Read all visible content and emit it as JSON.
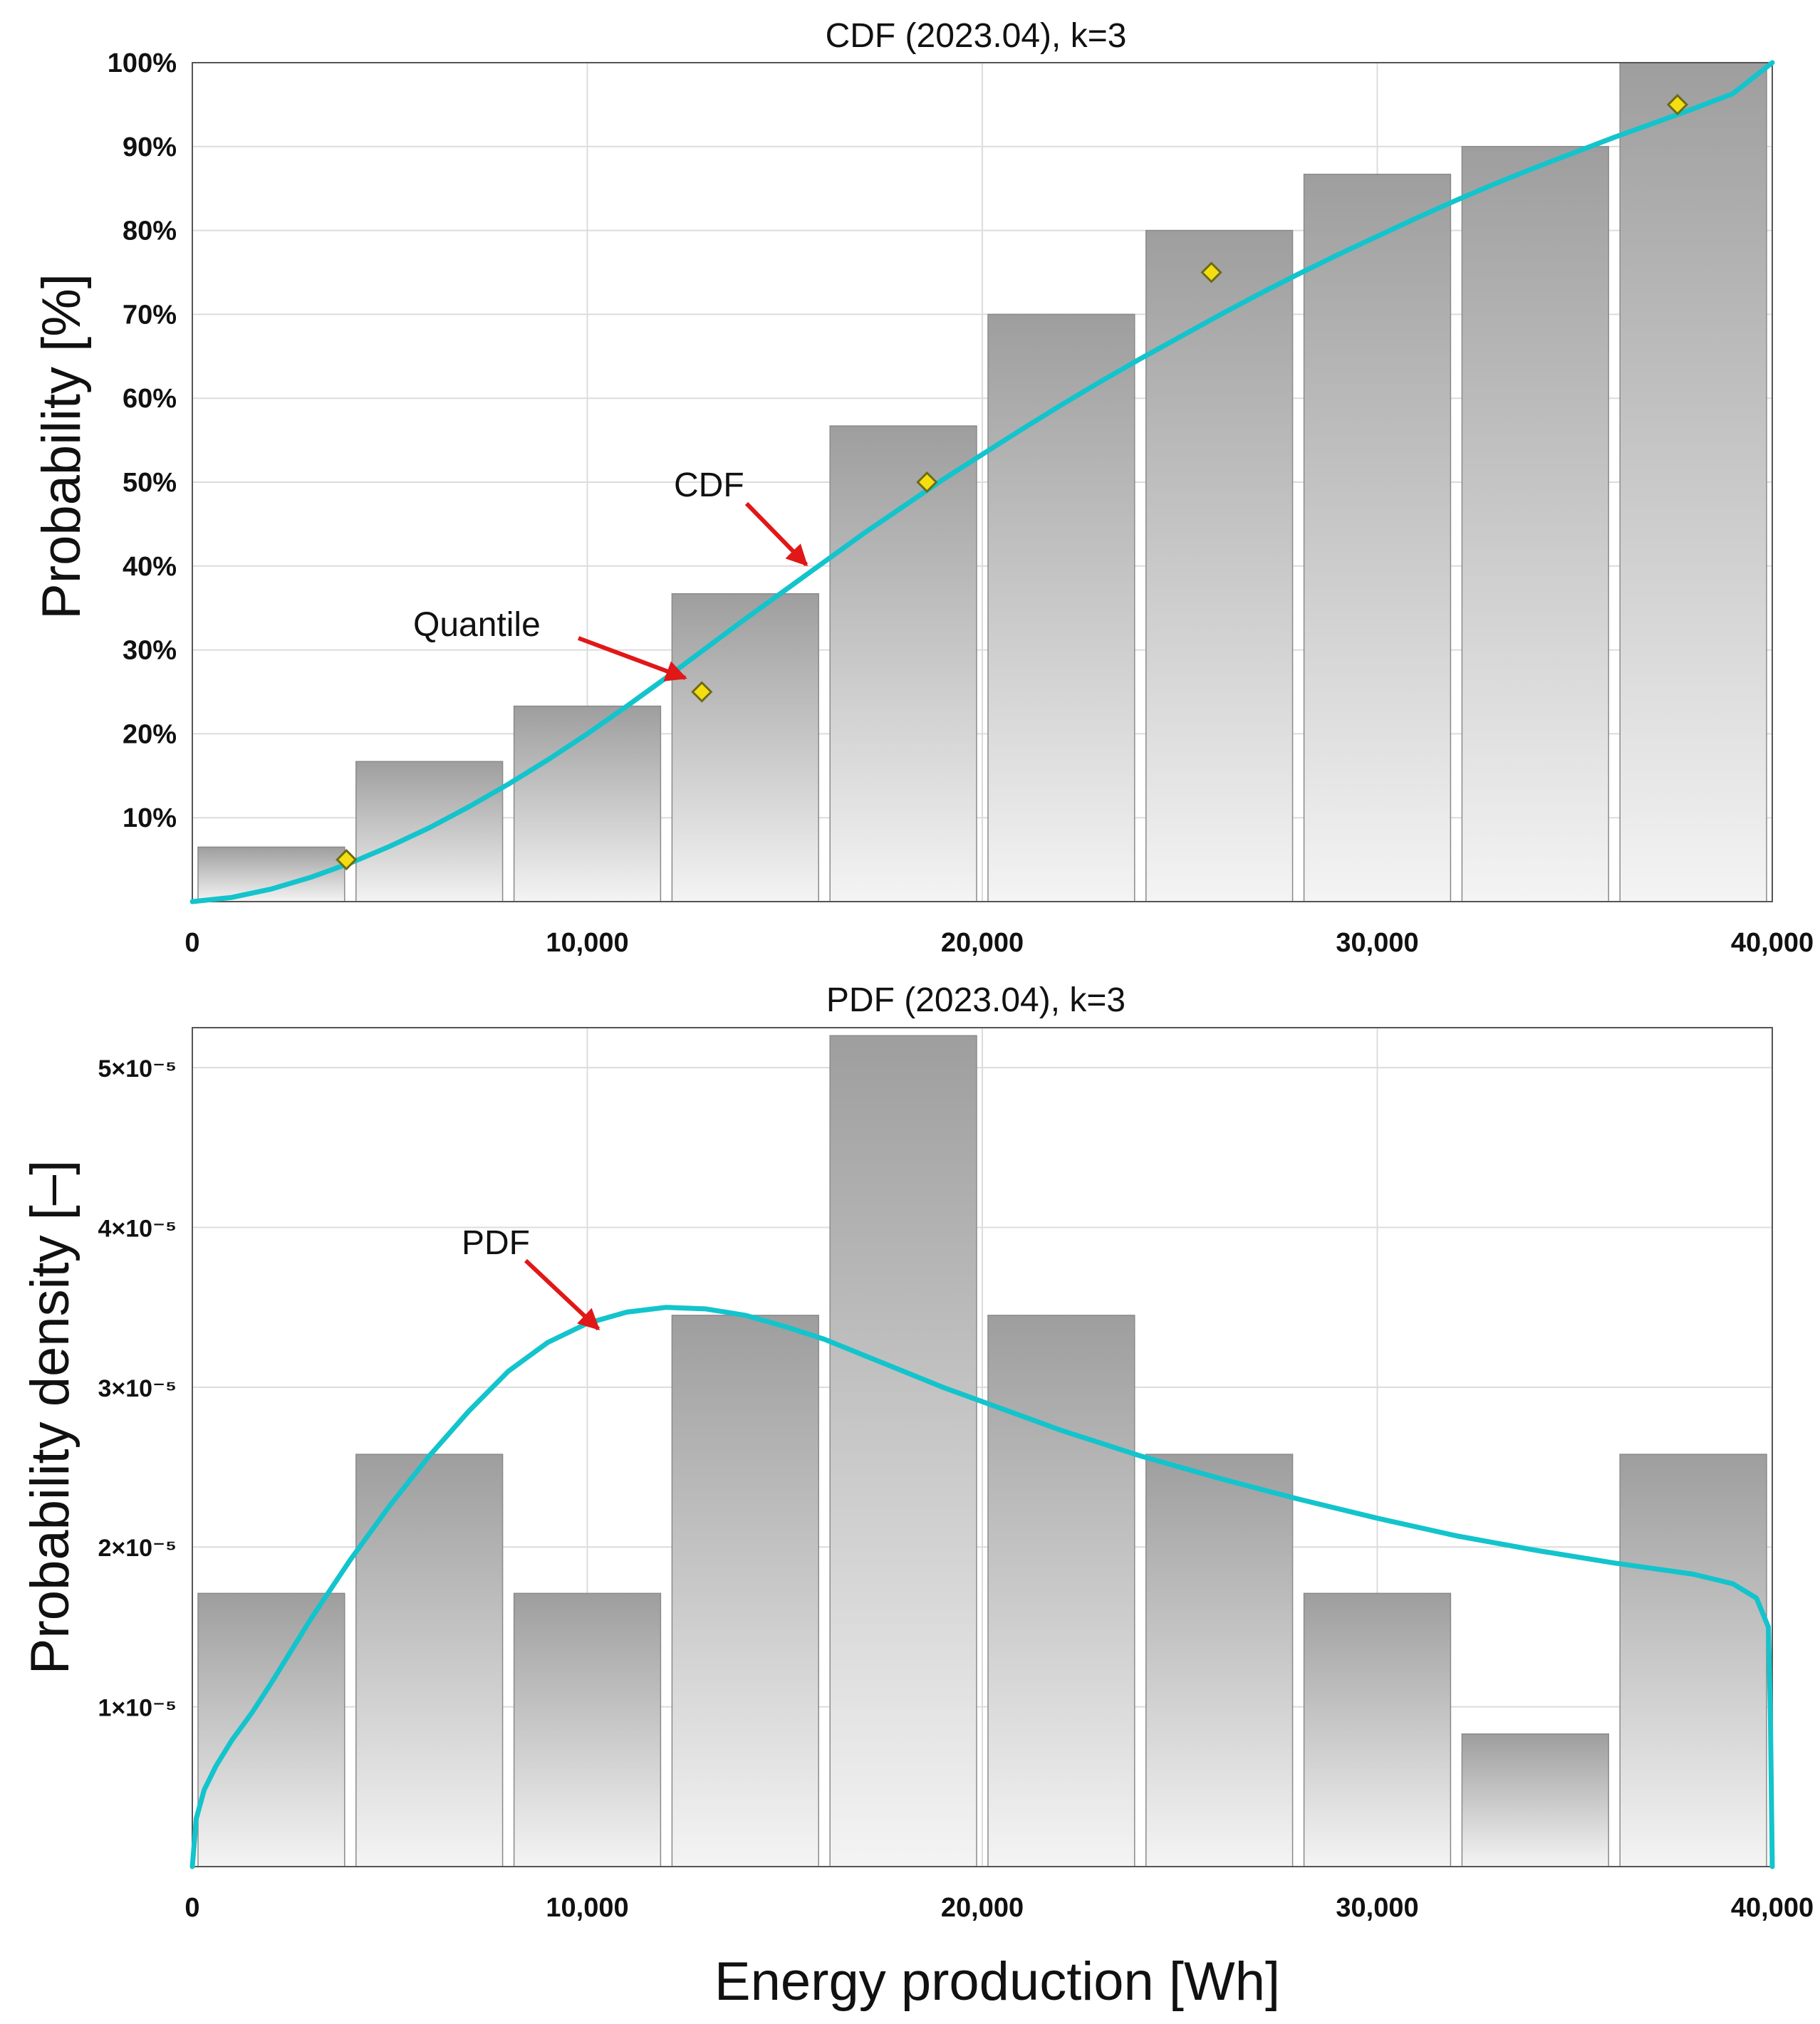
{
  "chart_data": [
    {
      "type": "bar",
      "title": "CDF (2023.04), k=3",
      "xlabel": "",
      "ylabel": "Probability [%]",
      "xlim": [
        0,
        40000
      ],
      "ylim": [
        0,
        100
      ],
      "grid": true,
      "x_ticks": [
        0,
        10000,
        20000,
        30000,
        40000
      ],
      "x_tick_labels": [
        "0",
        "10,000",
        "20,000",
        "30,000",
        "40,000"
      ],
      "y_ticks": [
        10,
        20,
        30,
        40,
        50,
        60,
        70,
        80,
        90,
        100
      ],
      "y_tick_labels": [
        "10%",
        "20%",
        "30%",
        "40%",
        "50%",
        "60%",
        "70%",
        "80%",
        "90%",
        "100%"
      ],
      "bins": [
        {
          "x0": 0,
          "x1": 4000,
          "value": 6.5
        },
        {
          "x0": 4000,
          "x1": 8000,
          "value": 16.7
        },
        {
          "x0": 8000,
          "x1": 12000,
          "value": 23.3
        },
        {
          "x0": 12000,
          "x1": 16000,
          "value": 36.7
        },
        {
          "x0": 16000,
          "x1": 20000,
          "value": 56.7
        },
        {
          "x0": 20000,
          "x1": 24000,
          "value": 70.0
        },
        {
          "x0": 24000,
          "x1": 28000,
          "value": 80.0
        },
        {
          "x0": 28000,
          "x1": 32000,
          "value": 86.7
        },
        {
          "x0": 32000,
          "x1": 36000,
          "value": 90.0
        },
        {
          "x0": 36000,
          "x1": 40000,
          "value": 100.0
        }
      ],
      "curve_name": "CDF",
      "curve_color": "#13c4cc",
      "curve_points": [
        [
          0,
          0
        ],
        [
          1000,
          0.5
        ],
        [
          2000,
          1.5
        ],
        [
          3000,
          2.9
        ],
        [
          4000,
          4.6
        ],
        [
          5000,
          6.6
        ],
        [
          6000,
          8.8
        ],
        [
          7000,
          11.3
        ],
        [
          8000,
          14.0
        ],
        [
          9000,
          16.9
        ],
        [
          10000,
          20.0
        ],
        [
          11000,
          23.3
        ],
        [
          12000,
          26.7
        ],
        [
          13000,
          30.2
        ],
        [
          14000,
          33.7
        ],
        [
          15000,
          37.1
        ],
        [
          16000,
          40.5
        ],
        [
          17000,
          43.9
        ],
        [
          18000,
          47.1
        ],
        [
          19000,
          50.3
        ],
        [
          20000,
          53.3
        ],
        [
          21000,
          56.3
        ],
        [
          22000,
          59.2
        ],
        [
          23000,
          62.0
        ],
        [
          24000,
          64.7
        ],
        [
          25000,
          67.3
        ],
        [
          26000,
          69.9
        ],
        [
          27000,
          72.4
        ],
        [
          28000,
          74.8
        ],
        [
          29000,
          77.1
        ],
        [
          30000,
          79.3
        ],
        [
          31000,
          81.5
        ],
        [
          32000,
          83.6
        ],
        [
          33000,
          85.6
        ],
        [
          34000,
          87.5
        ],
        [
          35000,
          89.3
        ],
        [
          36000,
          91.1
        ],
        [
          37000,
          92.8
        ],
        [
          38000,
          94.5
        ],
        [
          39000,
          96.3
        ],
        [
          40000,
          100.0
        ]
      ],
      "quantiles_name": "Quantile",
      "quantiles": [
        [
          3900,
          5
        ],
        [
          12900,
          25
        ],
        [
          18600,
          50
        ],
        [
          25800,
          75
        ],
        [
          37600,
          95
        ]
      ],
      "annotations": [
        {
          "text": "CDF",
          "target": [
            15600,
            40.5
          ]
        },
        {
          "text": "Quantile",
          "target": [
            12300,
            27.5
          ]
        }
      ]
    },
    {
      "type": "bar",
      "title": "PDF (2023.04), k=3",
      "xlabel": "Energy production [Wh]",
      "ylabel": "Probability density [–]",
      "xlim": [
        0,
        40000
      ],
      "ylim": [
        0,
        5.25e-05
      ],
      "grid": true,
      "x_ticks": [
        0,
        10000,
        20000,
        30000,
        40000
      ],
      "x_tick_labels": [
        "0",
        "10,000",
        "20,000",
        "30,000",
        "40,000"
      ],
      "y_ticks": [
        1e-05,
        2e-05,
        3e-05,
        4e-05,
        5e-05
      ],
      "y_tick_labels": [
        "1×10⁻⁵",
        "2×10⁻⁵",
        "3×10⁻⁵",
        "4×10⁻⁵",
        "5×10⁻⁵"
      ],
      "bins": [
        {
          "x0": 0,
          "x1": 4000,
          "value": 1.71e-05
        },
        {
          "x0": 4000,
          "x1": 8000,
          "value": 2.58e-05
        },
        {
          "x0": 8000,
          "x1": 12000,
          "value": 1.71e-05
        },
        {
          "x0": 12000,
          "x1": 16000,
          "value": 3.45e-05
        },
        {
          "x0": 16000,
          "x1": 20000,
          "value": 5.2e-05
        },
        {
          "x0": 20000,
          "x1": 24000,
          "value": 3.45e-05
        },
        {
          "x0": 24000,
          "x1": 28000,
          "value": 2.58e-05
        },
        {
          "x0": 28000,
          "x1": 32000,
          "value": 1.71e-05
        },
        {
          "x0": 32000,
          "x1": 36000,
          "value": 8.3e-06
        },
        {
          "x0": 36000,
          "x1": 40000,
          "value": 2.58e-05
        }
      ],
      "curve_name": "PDF",
      "curve_color": "#13c4cc",
      "curve_points": [
        [
          0,
          0
        ],
        [
          100,
          3e-06
        ],
        [
          300,
          4.8e-06
        ],
        [
          600,
          6.3e-06
        ],
        [
          1000,
          7.9e-06
        ],
        [
          1500,
          9.6e-06
        ],
        [
          2000,
          1.15e-05
        ],
        [
          3000,
          1.55e-05
        ],
        [
          4000,
          1.92e-05
        ],
        [
          5000,
          2.26e-05
        ],
        [
          6000,
          2.57e-05
        ],
        [
          7000,
          2.85e-05
        ],
        [
          8000,
          3.1e-05
        ],
        [
          9000,
          3.28e-05
        ],
        [
          10000,
          3.4e-05
        ],
        [
          11000,
          3.47e-05
        ],
        [
          12000,
          3.5e-05
        ],
        [
          13000,
          3.49e-05
        ],
        [
          14000,
          3.45e-05
        ],
        [
          15000,
          3.38e-05
        ],
        [
          16000,
          3.3e-05
        ],
        [
          17000,
          3.2e-05
        ],
        [
          18000,
          3.1e-05
        ],
        [
          19000,
          3e-05
        ],
        [
          20000,
          2.91e-05
        ],
        [
          22000,
          2.73e-05
        ],
        [
          24000,
          2.57e-05
        ],
        [
          26000,
          2.43e-05
        ],
        [
          28000,
          2.3e-05
        ],
        [
          30000,
          2.18e-05
        ],
        [
          32000,
          2.07e-05
        ],
        [
          34000,
          1.98e-05
        ],
        [
          36000,
          1.9e-05
        ],
        [
          38000,
          1.83e-05
        ],
        [
          39000,
          1.77e-05
        ],
        [
          39600,
          1.68e-05
        ],
        [
          39900,
          1.5e-05
        ],
        [
          39950,
          1e-05
        ],
        [
          40000,
          0
        ]
      ],
      "annotations": [
        {
          "text": "PDF",
          "target": [
            10300,
            3.38e-05
          ]
        }
      ]
    }
  ]
}
